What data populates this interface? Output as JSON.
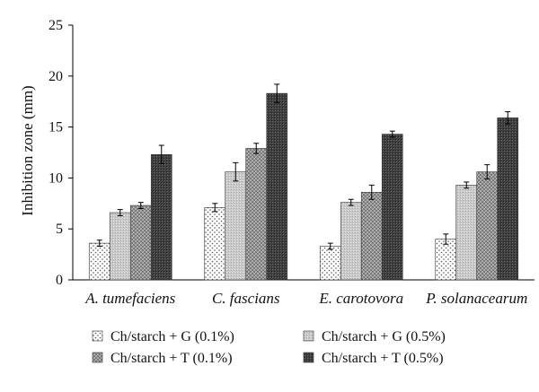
{
  "chart_data": {
    "type": "bar",
    "ylabel": "Inhibition zone (mm)",
    "ylim": [
      0,
      25
    ],
    "yticks": [
      0,
      5,
      10,
      15,
      20,
      25
    ],
    "grid": false,
    "legend_position": "bottom",
    "categories": [
      "A. tumefaciens",
      "C. fascians",
      "E. carotovora",
      "P. solanacearum"
    ],
    "series": [
      {
        "name": "Ch/starch + G (0.1%)",
        "values": [
          3.6,
          7.1,
          3.3,
          4.0
        ],
        "errors": [
          0.3,
          0.4,
          0.3,
          0.5
        ],
        "pattern": "dots"
      },
      {
        "name": "Ch/starch + G (0.5%)",
        "values": [
          6.6,
          10.6,
          7.6,
          9.3
        ],
        "errors": [
          0.3,
          0.9,
          0.3,
          0.3
        ],
        "pattern": "light"
      },
      {
        "name": "Ch/starch + T (0.1%)",
        "values": [
          7.3,
          12.9,
          8.6,
          10.6
        ],
        "errors": [
          0.3,
          0.5,
          0.7,
          0.7
        ],
        "pattern": "mid"
      },
      {
        "name": "Ch/starch + T (0.5%)",
        "values": [
          12.3,
          18.3,
          14.3,
          15.9
        ],
        "errors": [
          0.9,
          0.9,
          0.3,
          0.6
        ],
        "pattern": "dark"
      }
    ]
  }
}
